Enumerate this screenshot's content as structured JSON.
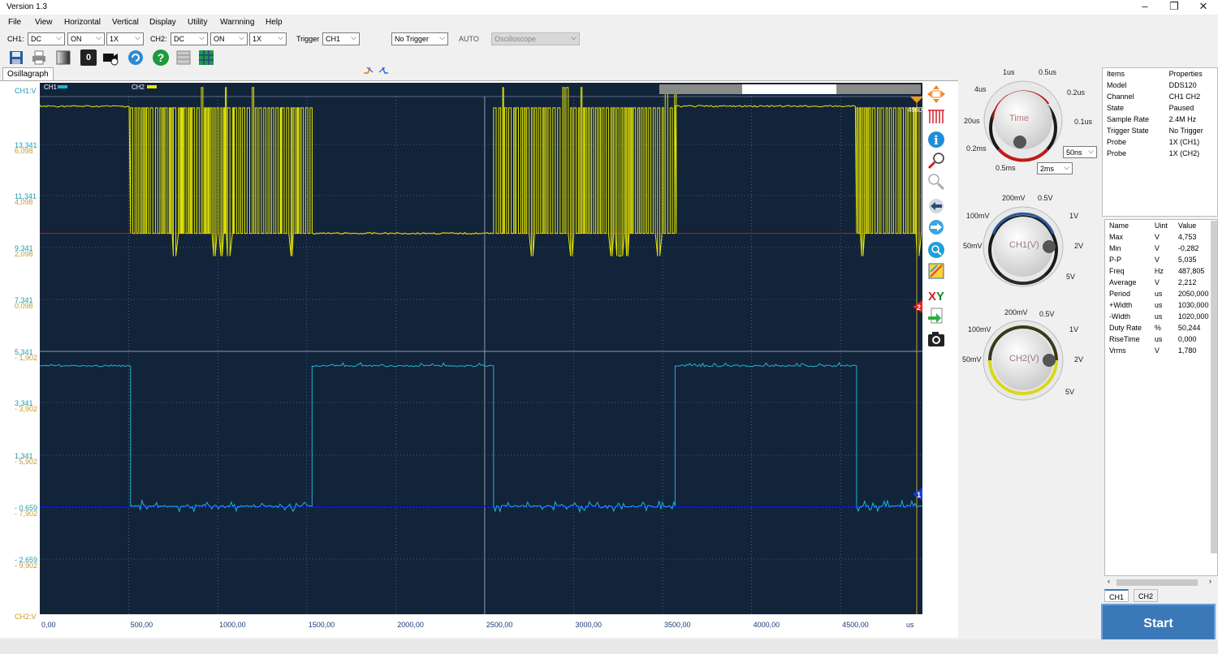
{
  "window": {
    "title": "Version 1.3",
    "minimize": "–",
    "maximize": "❐",
    "close": "✕"
  },
  "menu": [
    "File",
    "View",
    "Horizontal",
    "Vertical",
    "Display",
    "Utility",
    "Warnning",
    "Help"
  ],
  "controls": {
    "ch1_label": "CH1:",
    "ch1_coupling": "DC",
    "ch1_state": "ON",
    "ch1_probe": "1X",
    "ch2_label": "CH2:",
    "ch2_coupling": "DC",
    "ch2_state": "ON",
    "ch2_probe": "1X",
    "trigger_label": "Trigger",
    "trigger_source": "CH1",
    "trigger_mode": "No Trigger",
    "auto_label": "AUTO",
    "instrument": "Oscilloscope"
  },
  "toolbar": {
    "zero_button": "0",
    "help_button": "?"
  },
  "tab": "Osillagraph",
  "scope": {
    "ch1_axis_label": "CH1:V",
    "ch2_axis_label": "CH2:V",
    "legend_ch1": "CH1",
    "legend_ch2": "CH2",
    "trigger_time_marker": "4960",
    "ch1_marker": "1",
    "ch2_marker": "2",
    "x_unit": "us",
    "colors": {
      "ch1": "#1fb3d2",
      "ch2": "#e6e600",
      "background": "#12243a",
      "ch1_ref": "#0000ff",
      "ch2_ref": "#ff0000"
    }
  },
  "chart_data": {
    "type": "line",
    "xlabel": "us",
    "xlim": [
      0,
      4960
    ],
    "x_ticks": [
      "0,00",
      "500,00",
      "1000,00",
      "1500,00",
      "2000,00",
      "2500,00",
      "3000,00",
      "3500,00",
      "4000,00",
      "4500,00"
    ],
    "ch1_ticks": [
      "13,341",
      "11,341",
      "9,341",
      "7,341",
      "5,341",
      "3,341",
      "1,341",
      "- 0,659",
      "- 2,659"
    ],
    "ch2_ticks": [
      "6,098",
      "4,098",
      "2,098",
      "0,098",
      "- 1,902",
      "- 3,902",
      "- 5,902",
      "- 7,902",
      "- 9,902"
    ],
    "series": [
      {
        "name": "CH1",
        "color": "#1fb3d2",
        "ylim": [
          -3.66,
          14.34
        ],
        "high": 4.75,
        "low": 0.0,
        "transitions": [
          [
            0,
            4.75
          ],
          [
            510,
            0.0
          ],
          [
            1530,
            4.75
          ],
          [
            2550,
            0.0
          ],
          [
            3570,
            4.75
          ],
          [
            4590,
            0.0
          ]
        ]
      },
      {
        "name": "CH2",
        "color": "#e6e600",
        "ylim": [
          -12.9,
          5.1
        ],
        "high": 4.25,
        "low": 0.0,
        "bursts": [
          [
            510,
            1530
          ],
          [
            2550,
            3570
          ],
          [
            4590,
            4960
          ]
        ]
      }
    ]
  },
  "knobs": {
    "time": {
      "label": "Time",
      "ticks": [
        "1us",
        "0.5us",
        "4us",
        "0.2us",
        "20us",
        "0.1us",
        "0.2ms",
        "0.5ms"
      ],
      "fine": "50ns",
      "coarse": "2ms"
    },
    "ch1": {
      "label": "CH1(V)",
      "ticks": [
        "200mV",
        "0.5V",
        "100mV",
        "1V",
        "50mV",
        "2V",
        "5V"
      ]
    },
    "ch2": {
      "label": "CH2(V)",
      "ticks": [
        "200mV",
        "0.5V",
        "100mV",
        "1V",
        "50mV",
        "2V",
        "5V"
      ]
    }
  },
  "properties": {
    "headers": [
      "Items",
      "Properties"
    ],
    "rows": [
      [
        "Model",
        "DDS120"
      ],
      [
        "Channel",
        "CH1 CH2"
      ],
      [
        "State",
        "Paused"
      ],
      [
        "Sample Rate",
        "2.4M Hz"
      ],
      [
        "Trigger State",
        "No Trigger"
      ],
      [
        "Probe",
        "1X (CH1)"
      ],
      [
        "Probe",
        "1X (CH2)"
      ]
    ]
  },
  "measurements": {
    "headers": [
      "Name",
      "Uint",
      "Value"
    ],
    "rows": [
      [
        "Max",
        "V",
        "4,753"
      ],
      [
        "Min",
        "V",
        "-0,282"
      ],
      [
        "P-P",
        "V",
        "5,035"
      ],
      [
        "Freq",
        "Hz",
        "487,805"
      ],
      [
        "Average",
        "V",
        "2,212"
      ],
      [
        "Period",
        "us",
        "2050,000"
      ],
      [
        "+Width",
        "us",
        "1030,000"
      ],
      [
        "-Width",
        "us",
        "1020,000"
      ],
      [
        "Duty Rate",
        "%",
        "50,244"
      ],
      [
        "RiseTime",
        "us",
        "0,000"
      ],
      [
        "Vrms",
        "V",
        "1,780"
      ]
    ]
  },
  "channel_tabs": [
    "CH1",
    "CH2"
  ],
  "start_button": "Start"
}
